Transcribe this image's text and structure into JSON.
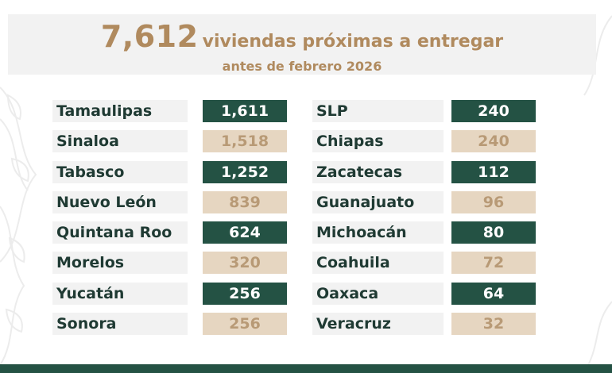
{
  "header": {
    "number": "7,612",
    "headline_rest": "viviendas próximas a entregar",
    "subline": "antes de febrero 2026"
  },
  "colors": {
    "dark_green": "#245244",
    "beige": "#e6d6c1",
    "gold_text": "#b08a5e",
    "name_text": "#1f3a33"
  },
  "states_left": [
    {
      "name": "Tamaulipas",
      "value": "1,611",
      "style": "dark"
    },
    {
      "name": "Sinaloa",
      "value": "1,518",
      "style": "light"
    },
    {
      "name": "Tabasco",
      "value": "1,252",
      "style": "dark"
    },
    {
      "name": "Nuevo León",
      "value": "839",
      "style": "light"
    },
    {
      "name": "Quintana Roo",
      "value": "624",
      "style": "dark"
    },
    {
      "name": "Morelos",
      "value": "320",
      "style": "light"
    },
    {
      "name": "Yucatán",
      "value": "256",
      "style": "dark"
    },
    {
      "name": "Sonora",
      "value": "256",
      "style": "light"
    }
  ],
  "states_right": [
    {
      "name": "SLP",
      "value": "240",
      "style": "dark"
    },
    {
      "name": "Chiapas",
      "value": "240",
      "style": "light"
    },
    {
      "name": "Zacatecas",
      "value": "112",
      "style": "dark"
    },
    {
      "name": "Guanajuato",
      "value": "96",
      "style": "light"
    },
    {
      "name": "Michoacán",
      "value": "80",
      "style": "dark"
    },
    {
      "name": "Coahuila",
      "value": "72",
      "style": "light"
    },
    {
      "name": "Oaxaca",
      "value": "64",
      "style": "dark"
    },
    {
      "name": "Veracruz",
      "value": "32",
      "style": "light"
    }
  ]
}
